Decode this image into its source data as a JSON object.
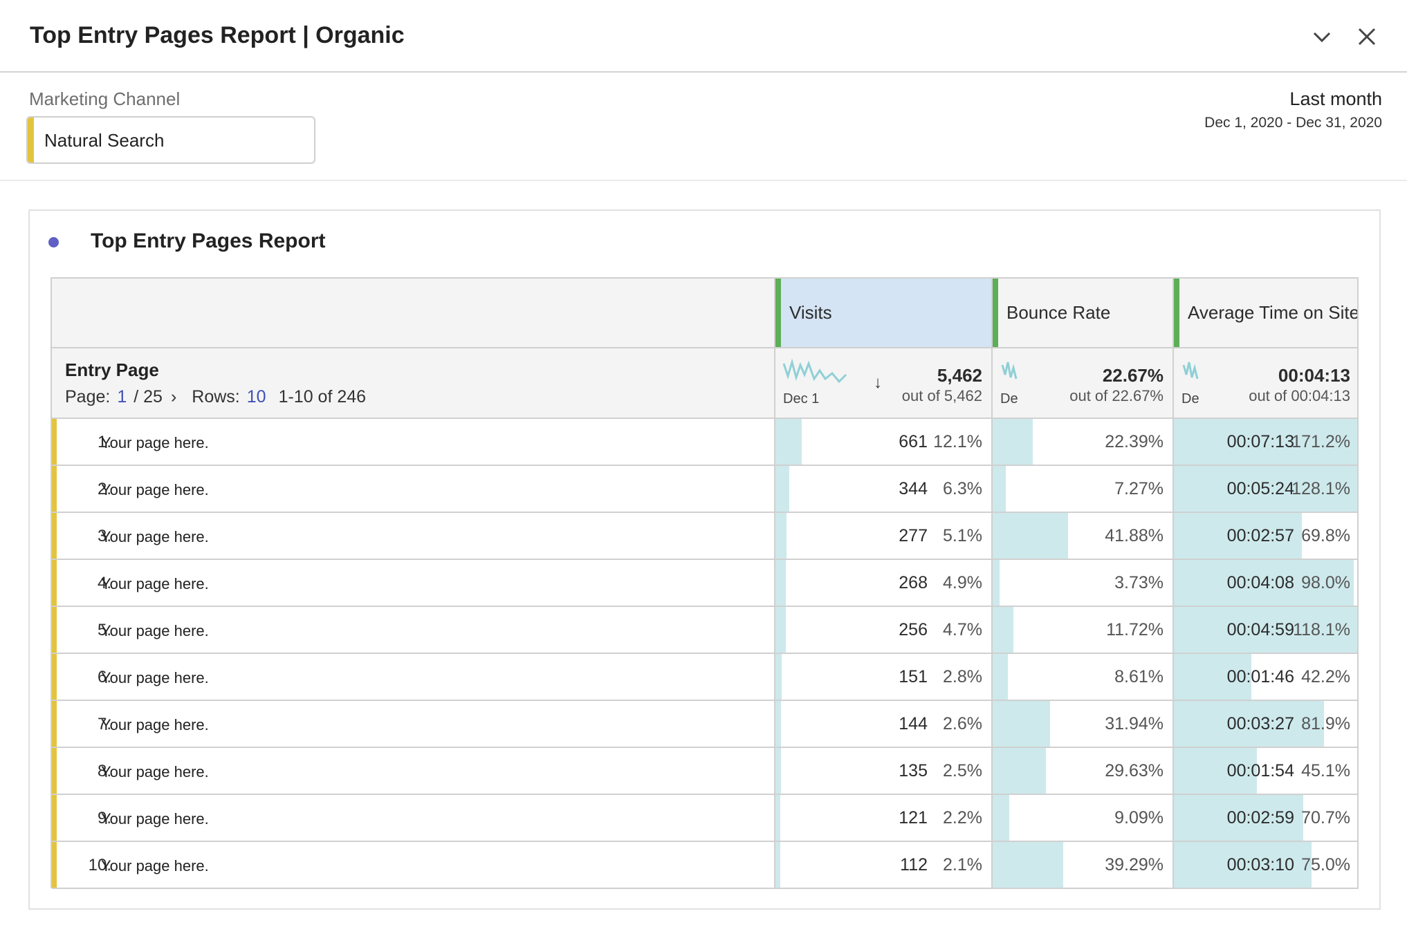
{
  "header": {
    "title": "Top Entry Pages Report | Organic"
  },
  "filter": {
    "label": "Marketing Channel",
    "value": "Natural Search"
  },
  "date_range": {
    "label": "Last month",
    "range": "Dec 1, 2020 - Dec 31, 2020"
  },
  "panel": {
    "title": "Top Entry Pages Report"
  },
  "table": {
    "columns": [
      "Visits",
      "Bounce Rate",
      "Average Time on Site"
    ],
    "dimension": "Entry Page",
    "pagination": {
      "page_label": "Page:",
      "page": "1",
      "pages": "/ 25",
      "rows_label": "Rows:",
      "rows": "10",
      "range": "1-10 of 246"
    },
    "totals": [
      {
        "spark_label": "Dec 1",
        "value": "5,462",
        "of": "out of 5,462"
      },
      {
        "spark_label": "De",
        "value": "22.67%",
        "of": "out of 22.67%"
      },
      {
        "spark_label": "De",
        "value": "00:04:13",
        "of": "out of 00:04:13"
      }
    ],
    "rows": [
      {
        "rank": "1.",
        "page": "Your page here.",
        "visits": "661",
        "visits_pct": "12.1%",
        "bounce": "22.39%",
        "time": "00:07:13",
        "time_pct": "171.2%"
      },
      {
        "rank": "2.",
        "page": "Your page here.",
        "visits": "344",
        "visits_pct": "6.3%",
        "bounce": "7.27%",
        "time": "00:05:24",
        "time_pct": "128.1%"
      },
      {
        "rank": "3.",
        "page": "Your page here.",
        "visits": "277",
        "visits_pct": "5.1%",
        "bounce": "41.88%",
        "time": "00:02:57",
        "time_pct": "69.8%"
      },
      {
        "rank": "4.",
        "page": "Your page here.",
        "visits": "268",
        "visits_pct": "4.9%",
        "bounce": "3.73%",
        "time": "00:04:08",
        "time_pct": "98.0%"
      },
      {
        "rank": "5.",
        "page": "Your page here.",
        "visits": "256",
        "visits_pct": "4.7%",
        "bounce": "11.72%",
        "time": "00:04:59",
        "time_pct": "118.1%"
      },
      {
        "rank": "6.",
        "page": "Your page here.",
        "visits": "151",
        "visits_pct": "2.8%",
        "bounce": "8.61%",
        "time": "00:01:46",
        "time_pct": "42.2%"
      },
      {
        "rank": "7.",
        "page": "Your page here.",
        "visits": "144",
        "visits_pct": "2.6%",
        "bounce": "31.94%",
        "time": "00:03:27",
        "time_pct": "81.9%"
      },
      {
        "rank": "8.",
        "page": "Your page here.",
        "visits": "135",
        "visits_pct": "2.5%",
        "bounce": "29.63%",
        "time": "00:01:54",
        "time_pct": "45.1%"
      },
      {
        "rank": "9.",
        "page": "Your page here.",
        "visits": "121",
        "visits_pct": "2.2%",
        "bounce": "9.09%",
        "time": "00:02:59",
        "time_pct": "70.7%"
      },
      {
        "rank": "10.",
        "page": "Your page here.",
        "visits": "112",
        "visits_pct": "2.1%",
        "bounce": "39.29%",
        "time": "00:03:10",
        "time_pct": "75.0%"
      }
    ]
  }
}
